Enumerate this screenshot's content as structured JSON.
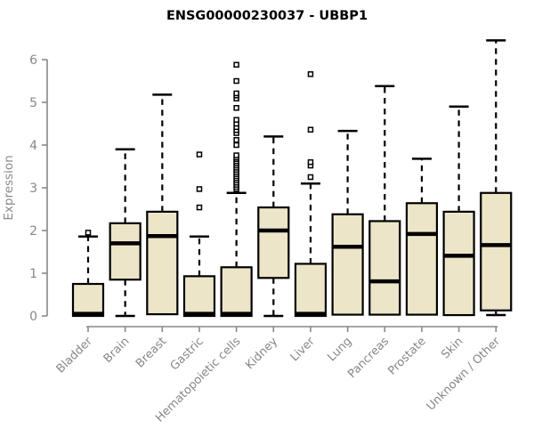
{
  "page": {
    "background": "#ffffff"
  },
  "header": {
    "title": "ENSG00000230037 - UBBP1"
  },
  "chart_data": {
    "type": "boxplot",
    "title": "ENSG00000230037 - UBBP1",
    "xlabel": "",
    "ylabel": "Expression",
    "ylim": [
      0,
      6.6
    ],
    "yticks": [
      0,
      1,
      2,
      3,
      4,
      5,
      6
    ],
    "grid": false,
    "legend": "none",
    "categories": [
      "Bladder",
      "Brain",
      "Breast",
      "Gastric",
      "Hematopoietic cells",
      "Kidney",
      "Liver",
      "Lung",
      "Pancreas",
      "Prostate",
      "Skin",
      "Unknown / Other"
    ],
    "series": [
      {
        "label": "Bladder",
        "whisker_low": 0,
        "q1": 0,
        "median": 0.05,
        "q3": 0.75,
        "whisker_high": 1.86,
        "outliers": [
          1.95
        ]
      },
      {
        "label": "Brain",
        "whisker_low": 0,
        "q1": 0.85,
        "median": 1.7,
        "q3": 2.17,
        "whisker_high": 3.9,
        "outliers": []
      },
      {
        "label": "Breast",
        "whisker_low": 0.04,
        "q1": 0.04,
        "median": 1.87,
        "q3": 2.44,
        "whisker_high": 5.18,
        "outliers": []
      },
      {
        "label": "Gastric",
        "whisker_low": 0,
        "q1": 0,
        "median": 0.05,
        "q3": 0.93,
        "whisker_high": 1.86,
        "outliers": [
          2.54,
          2.97,
          3.78
        ]
      },
      {
        "label": "Hematopoietic cells",
        "whisker_low": 0,
        "q1": 0,
        "median": 0.05,
        "q3": 1.14,
        "whisker_high": 2.88,
        "outliers": [
          2.97,
          3.02,
          3.07,
          3.12,
          3.17,
          3.22,
          3.27,
          3.32,
          3.37,
          3.42,
          3.47,
          3.52,
          3.57,
          3.62,
          3.67,
          3.71,
          3.76,
          4.0,
          4.12,
          4.28,
          4.35,
          4.42,
          4.5,
          4.59,
          4.87,
          5.09,
          5.16,
          5.21,
          5.5,
          5.88
        ]
      },
      {
        "label": "Kidney",
        "whisker_low": 0,
        "q1": 0.89,
        "median": 2.0,
        "q3": 2.54,
        "whisker_high": 4.2,
        "outliers": []
      },
      {
        "label": "Liver",
        "whisker_low": 0,
        "q1": 0,
        "median": 0.05,
        "q3": 1.22,
        "whisker_high": 3.1,
        "outliers": [
          3.25,
          3.52,
          3.6,
          4.36,
          5.66
        ]
      },
      {
        "label": "Lung",
        "whisker_low": 0.03,
        "q1": 0.03,
        "median": 1.62,
        "q3": 2.38,
        "whisker_high": 4.33,
        "outliers": []
      },
      {
        "label": "Pancreas",
        "whisker_low": 0.03,
        "q1": 0.03,
        "median": 0.81,
        "q3": 2.22,
        "whisker_high": 5.38,
        "outliers": []
      },
      {
        "label": "Prostate",
        "whisker_low": 0.03,
        "q1": 0.03,
        "median": 1.92,
        "q3": 2.64,
        "whisker_high": 3.68,
        "outliers": []
      },
      {
        "label": "Skin",
        "whisker_low": 0.02,
        "q1": 0.02,
        "median": 1.41,
        "q3": 2.44,
        "whisker_high": 4.9,
        "outliers": []
      },
      {
        "label": "Unknown / Other",
        "whisker_low": 0.02,
        "q1": 0.13,
        "median": 1.66,
        "q3": 2.88,
        "whisker_high": 6.45,
        "outliers": []
      }
    ],
    "style": {
      "box_fill": "#ECE5C8",
      "box_border": "#000000",
      "median_color": "#000000",
      "whisker_color": "#000000",
      "outlier_color": "#000000",
      "axis_color": "#888888",
      "tick_label_color": "#878787",
      "title_color": "#000000"
    }
  }
}
